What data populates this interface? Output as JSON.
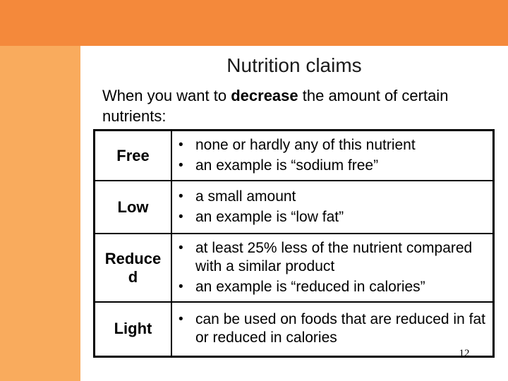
{
  "slide": {
    "title": "Nutrition claims",
    "intro": {
      "before": "When you want to ",
      "bold": "decrease",
      "after": " the amount of certain nutrients:"
    },
    "page_number": "12"
  },
  "table": {
    "bullet_glyph": "•",
    "rows": [
      {
        "term": "Free",
        "bullets": [
          "none or hardly any of this nutrient",
          "an example is “sodium free”"
        ]
      },
      {
        "term": "Low",
        "bullets": [
          "a small amount",
          "an example is “low fat”"
        ]
      },
      {
        "term": "Reduced",
        "bullets": [
          "at least 25% less of the nutrient compared with a similar product",
          "an example is “reduced in calories”"
        ]
      },
      {
        "term": "Light",
        "bullets": [
          "can be used on foods that are reduced in fat or reduced in calories"
        ]
      }
    ]
  },
  "colors": {
    "banner_orange": "#F4893B",
    "sidebar_orange": "#F9AB5D",
    "table_border": "#000000",
    "text": "#000000",
    "background": "#FFFFFF"
  }
}
